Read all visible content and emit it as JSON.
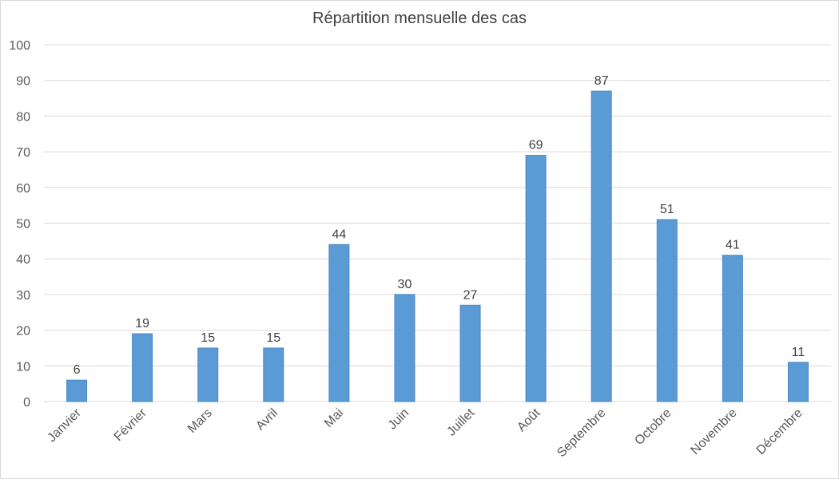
{
  "chart_data": {
    "type": "bar",
    "title": "Répartition mensuelle des cas",
    "categories": [
      "Janvier",
      "Février",
      "Mars",
      "Avril",
      "Mai",
      "Juin",
      "Juillet",
      "Août",
      "Septembre",
      "Octobre",
      "Novembre",
      "Décembre"
    ],
    "values": [
      6,
      19,
      15,
      15,
      44,
      30,
      27,
      69,
      87,
      51,
      41,
      11
    ],
    "xlabel": "",
    "ylabel": "",
    "ylim": [
      0,
      100
    ],
    "yticks": [
      "0",
      "10",
      "20",
      "30",
      "40",
      "50",
      "60",
      "70",
      "80",
      "90",
      "100"
    ],
    "grid": true,
    "legend": "none",
    "bar_color": "#5b9bd5",
    "bar_edge_color": "#4a89c4",
    "grid_color": "#d9d9d9"
  }
}
